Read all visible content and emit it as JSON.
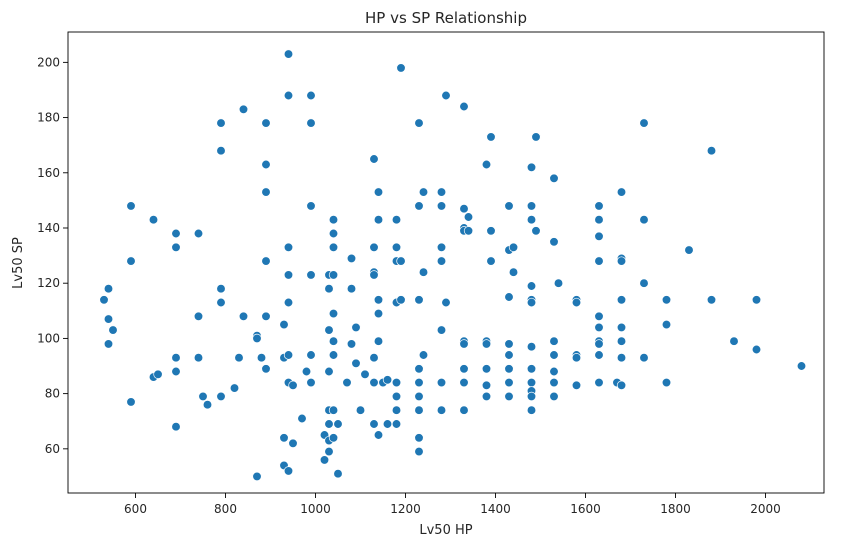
{
  "chart_data": {
    "type": "scatter",
    "title": "HP vs SP Relationship",
    "xlabel": "Lv50 HP",
    "ylabel": "Lv50 SP",
    "xlim": [
      450,
      2130
    ],
    "ylim": [
      44,
      211
    ],
    "xticks": [
      600,
      800,
      1000,
      1200,
      1400,
      1600,
      1800,
      2000
    ],
    "yticks": [
      60,
      80,
      100,
      120,
      140,
      160,
      180,
      200
    ],
    "grid": false,
    "legend": "none",
    "color": "#1f77b4",
    "points": [
      [
        530,
        114
      ],
      [
        540,
        118
      ],
      [
        540,
        107
      ],
      [
        540,
        98
      ],
      [
        550,
        103
      ],
      [
        590,
        148
      ],
      [
        590,
        128
      ],
      [
        590,
        77
      ],
      [
        640,
        143
      ],
      [
        640,
        86
      ],
      [
        650,
        87
      ],
      [
        690,
        138
      ],
      [
        690,
        133
      ],
      [
        690,
        93
      ],
      [
        690,
        88
      ],
      [
        690,
        68
      ],
      [
        740,
        138
      ],
      [
        740,
        108
      ],
      [
        740,
        93
      ],
      [
        750,
        79
      ],
      [
        760,
        76
      ],
      [
        790,
        178
      ],
      [
        790,
        168
      ],
      [
        790,
        118
      ],
      [
        790,
        113
      ],
      [
        790,
        79
      ],
      [
        820,
        82
      ],
      [
        830,
        93
      ],
      [
        840,
        183
      ],
      [
        840,
        108
      ],
      [
        870,
        101
      ],
      [
        870,
        100
      ],
      [
        870,
        50
      ],
      [
        880,
        93
      ],
      [
        890,
        178
      ],
      [
        890,
        163
      ],
      [
        890,
        153
      ],
      [
        890,
        128
      ],
      [
        890,
        108
      ],
      [
        890,
        89
      ],
      [
        930,
        105
      ],
      [
        930,
        64
      ],
      [
        930,
        54
      ],
      [
        930,
        93
      ],
      [
        940,
        203
      ],
      [
        940,
        188
      ],
      [
        940,
        133
      ],
      [
        940,
        123
      ],
      [
        940,
        113
      ],
      [
        940,
        94
      ],
      [
        940,
        84
      ],
      [
        940,
        52
      ],
      [
        950,
        83
      ],
      [
        950,
        62
      ],
      [
        970,
        71
      ],
      [
        980,
        88
      ],
      [
        990,
        188
      ],
      [
        990,
        178
      ],
      [
        990,
        148
      ],
      [
        990,
        123
      ],
      [
        990,
        94
      ],
      [
        990,
        84
      ],
      [
        1020,
        65
      ],
      [
        1020,
        56
      ],
      [
        1030,
        123
      ],
      [
        1030,
        118
      ],
      [
        1030,
        103
      ],
      [
        1030,
        88
      ],
      [
        1030,
        74
      ],
      [
        1030,
        69
      ],
      [
        1030,
        63
      ],
      [
        1030,
        59
      ],
      [
        1040,
        143
      ],
      [
        1040,
        138
      ],
      [
        1040,
        133
      ],
      [
        1040,
        123
      ],
      [
        1040,
        109
      ],
      [
        1040,
        99
      ],
      [
        1040,
        94
      ],
      [
        1040,
        74
      ],
      [
        1040,
        64
      ],
      [
        1050,
        69
      ],
      [
        1050,
        51
      ],
      [
        1070,
        84
      ],
      [
        1080,
        129
      ],
      [
        1080,
        118
      ],
      [
        1080,
        98
      ],
      [
        1090,
        104
      ],
      [
        1090,
        91
      ],
      [
        1100,
        74
      ],
      [
        1110,
        87
      ],
      [
        1130,
        165
      ],
      [
        1130,
        133
      ],
      [
        1130,
        124
      ],
      [
        1130,
        123
      ],
      [
        1130,
        93
      ],
      [
        1130,
        84
      ],
      [
        1130,
        69
      ],
      [
        1140,
        153
      ],
      [
        1140,
        143
      ],
      [
        1140,
        114
      ],
      [
        1140,
        109
      ],
      [
        1140,
        99
      ],
      [
        1140,
        65
      ],
      [
        1150,
        84
      ],
      [
        1160,
        85
      ],
      [
        1160,
        69
      ],
      [
        1180,
        143
      ],
      [
        1180,
        133
      ],
      [
        1180,
        128
      ],
      [
        1180,
        113
      ],
      [
        1180,
        84
      ],
      [
        1180,
        79
      ],
      [
        1180,
        74
      ],
      [
        1180,
        69
      ],
      [
        1190,
        198
      ],
      [
        1190,
        128
      ],
      [
        1190,
        114
      ],
      [
        1230,
        178
      ],
      [
        1230,
        148
      ],
      [
        1230,
        114
      ],
      [
        1230,
        89
      ],
      [
        1230,
        84
      ],
      [
        1230,
        79
      ],
      [
        1230,
        74
      ],
      [
        1230,
        64
      ],
      [
        1230,
        59
      ],
      [
        1240,
        153
      ],
      [
        1240,
        124
      ],
      [
        1240,
        94
      ],
      [
        1280,
        153
      ],
      [
        1280,
        148
      ],
      [
        1280,
        133
      ],
      [
        1280,
        128
      ],
      [
        1280,
        103
      ],
      [
        1280,
        84
      ],
      [
        1280,
        74
      ],
      [
        1290,
        188
      ],
      [
        1290,
        113
      ],
      [
        1330,
        184
      ],
      [
        1330,
        147
      ],
      [
        1330,
        140
      ],
      [
        1330,
        139
      ],
      [
        1330,
        99
      ],
      [
        1330,
        98
      ],
      [
        1330,
        89
      ],
      [
        1330,
        84
      ],
      [
        1330,
        74
      ],
      [
        1340,
        139
      ],
      [
        1340,
        144
      ],
      [
        1380,
        163
      ],
      [
        1380,
        99
      ],
      [
        1380,
        98
      ],
      [
        1380,
        89
      ],
      [
        1380,
        83
      ],
      [
        1380,
        79
      ],
      [
        1390,
        173
      ],
      [
        1390,
        139
      ],
      [
        1390,
        128
      ],
      [
        1430,
        148
      ],
      [
        1430,
        132
      ],
      [
        1430,
        115
      ],
      [
        1430,
        98
      ],
      [
        1430,
        94
      ],
      [
        1430,
        89
      ],
      [
        1430,
        84
      ],
      [
        1430,
        79
      ],
      [
        1440,
        133
      ],
      [
        1440,
        124
      ],
      [
        1480,
        162
      ],
      [
        1480,
        148
      ],
      [
        1480,
        143
      ],
      [
        1480,
        119
      ],
      [
        1480,
        114
      ],
      [
        1480,
        113
      ],
      [
        1480,
        97
      ],
      [
        1480,
        89
      ],
      [
        1480,
        84
      ],
      [
        1480,
        81
      ],
      [
        1480,
        79
      ],
      [
        1480,
        74
      ],
      [
        1490,
        173
      ],
      [
        1490,
        139
      ],
      [
        1530,
        158
      ],
      [
        1530,
        135
      ],
      [
        1530,
        99
      ],
      [
        1530,
        94
      ],
      [
        1530,
        88
      ],
      [
        1530,
        84
      ],
      [
        1530,
        79
      ],
      [
        1540,
        120
      ],
      [
        1580,
        114
      ],
      [
        1580,
        113
      ],
      [
        1580,
        94
      ],
      [
        1580,
        93
      ],
      [
        1580,
        83
      ],
      [
        1630,
        148
      ],
      [
        1630,
        143
      ],
      [
        1630,
        137
      ],
      [
        1630,
        128
      ],
      [
        1630,
        108
      ],
      [
        1630,
        104
      ],
      [
        1630,
        99
      ],
      [
        1630,
        98
      ],
      [
        1630,
        94
      ],
      [
        1630,
        84
      ],
      [
        1670,
        84
      ],
      [
        1680,
        153
      ],
      [
        1680,
        129
      ],
      [
        1680,
        128
      ],
      [
        1680,
        114
      ],
      [
        1680,
        104
      ],
      [
        1680,
        99
      ],
      [
        1680,
        93
      ],
      [
        1680,
        83
      ],
      [
        1730,
        178
      ],
      [
        1730,
        143
      ],
      [
        1730,
        120
      ],
      [
        1730,
        93
      ],
      [
        1780,
        114
      ],
      [
        1780,
        105
      ],
      [
        1780,
        84
      ],
      [
        1830,
        132
      ],
      [
        1880,
        168
      ],
      [
        1880,
        114
      ],
      [
        1930,
        99
      ],
      [
        1980,
        114
      ],
      [
        1980,
        96
      ],
      [
        2080,
        90
      ]
    ]
  }
}
